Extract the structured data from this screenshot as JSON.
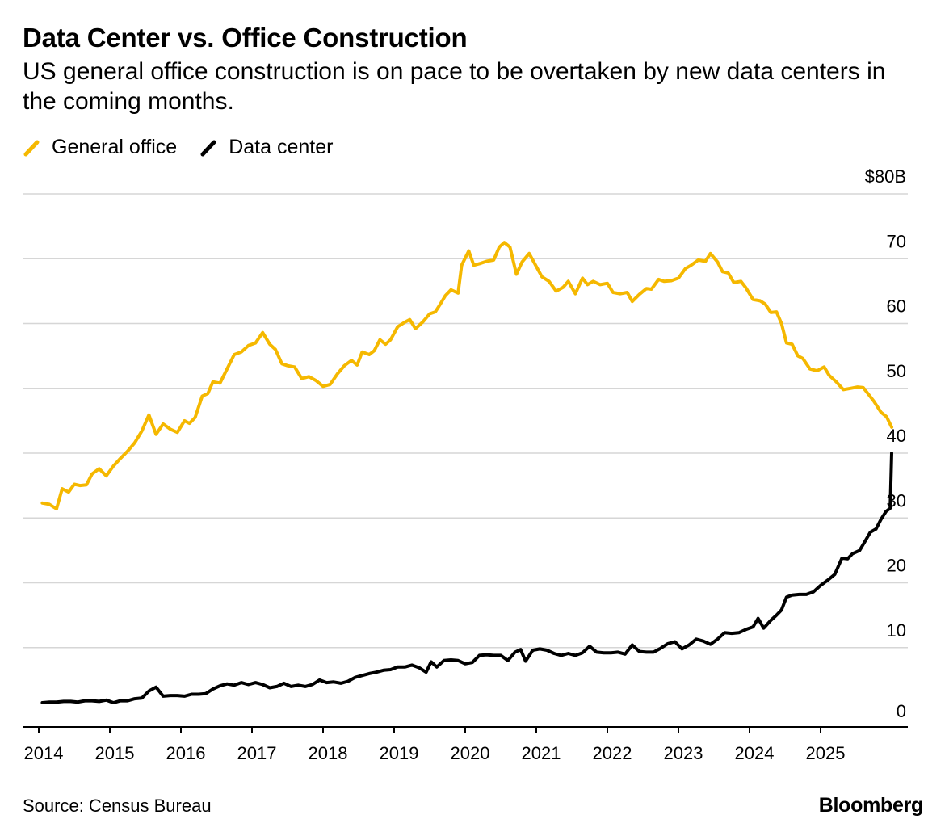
{
  "header": {
    "title": "Data Center vs. Office Construction",
    "subtitle": "US general office construction is on pace to be overtaken by new data centers in the coming months."
  },
  "legend": [
    {
      "label": "General office",
      "color": "#F5B800"
    },
    {
      "label": "Data center",
      "color": "#000000"
    }
  ],
  "footer": {
    "source": "Source: Census Bureau",
    "brand": "Bloomberg"
  },
  "chart_data": {
    "type": "line",
    "title": "Data Center vs. Office Construction",
    "xlabel": "",
    "ylabel": "",
    "xlim": [
      2014.0,
      2026.0
    ],
    "ylim": [
      0,
      80
    ],
    "x_ticks": [
      "2014",
      "2015",
      "2016",
      "2017",
      "2018",
      "2019",
      "2020",
      "2021",
      "2022",
      "2023",
      "2024",
      "2025"
    ],
    "y_ticks": [
      "0",
      "10",
      "20",
      "30",
      "40",
      "50",
      "60",
      "70",
      "$80B"
    ],
    "y_tick_values": [
      0,
      10,
      20,
      30,
      40,
      50,
      60,
      70,
      80
    ],
    "grid": true,
    "legend_position": "top-left",
    "series": [
      {
        "name": "General office",
        "color": "#F5B800",
        "points": [
          [
            2014.05,
            32.3
          ],
          [
            2014.15,
            32.1
          ],
          [
            2014.25,
            31.4
          ],
          [
            2014.33,
            34.5
          ],
          [
            2014.42,
            34.0
          ],
          [
            2014.5,
            35.2
          ],
          [
            2014.58,
            35.0
          ],
          [
            2014.67,
            35.1
          ],
          [
            2014.75,
            36.8
          ],
          [
            2014.85,
            37.6
          ],
          [
            2014.95,
            36.5
          ],
          [
            2015.05,
            38.0
          ],
          [
            2015.15,
            39.2
          ],
          [
            2015.25,
            40.3
          ],
          [
            2015.35,
            41.6
          ],
          [
            2015.45,
            43.4
          ],
          [
            2015.55,
            45.9
          ],
          [
            2015.65,
            42.9
          ],
          [
            2015.75,
            44.5
          ],
          [
            2015.85,
            43.7
          ],
          [
            2015.95,
            43.2
          ],
          [
            2016.05,
            45.0
          ],
          [
            2016.12,
            44.6
          ],
          [
            2016.2,
            45.5
          ],
          [
            2016.3,
            48.8
          ],
          [
            2016.38,
            49.2
          ],
          [
            2016.45,
            51.0
          ],
          [
            2016.55,
            50.8
          ],
          [
            2016.65,
            53.0
          ],
          [
            2016.75,
            55.2
          ],
          [
            2016.85,
            55.6
          ],
          [
            2016.95,
            56.6
          ],
          [
            2017.05,
            57.0
          ],
          [
            2017.15,
            58.6
          ],
          [
            2017.25,
            56.8
          ],
          [
            2017.33,
            56.0
          ],
          [
            2017.42,
            53.8
          ],
          [
            2017.5,
            53.5
          ],
          [
            2017.6,
            53.3
          ],
          [
            2017.7,
            51.5
          ],
          [
            2017.8,
            51.8
          ],
          [
            2017.9,
            51.2
          ],
          [
            2018.0,
            50.3
          ],
          [
            2018.1,
            50.6
          ],
          [
            2018.2,
            52.2
          ],
          [
            2018.3,
            53.5
          ],
          [
            2018.4,
            54.3
          ],
          [
            2018.48,
            53.6
          ],
          [
            2018.55,
            55.6
          ],
          [
            2018.65,
            55.2
          ],
          [
            2018.72,
            55.8
          ],
          [
            2018.8,
            57.5
          ],
          [
            2018.88,
            56.8
          ],
          [
            2018.95,
            57.5
          ],
          [
            2019.05,
            59.5
          ],
          [
            2019.15,
            60.2
          ],
          [
            2019.22,
            60.6
          ],
          [
            2019.3,
            59.2
          ],
          [
            2019.4,
            60.2
          ],
          [
            2019.5,
            61.5
          ],
          [
            2019.58,
            61.8
          ],
          [
            2019.65,
            63.0
          ],
          [
            2019.72,
            64.3
          ],
          [
            2019.8,
            65.2
          ],
          [
            2019.9,
            64.7
          ],
          [
            2019.95,
            69.0
          ],
          [
            2020.05,
            71.2
          ],
          [
            2020.12,
            69.0
          ],
          [
            2020.22,
            69.3
          ],
          [
            2020.3,
            69.6
          ],
          [
            2020.4,
            69.8
          ],
          [
            2020.48,
            71.8
          ],
          [
            2020.55,
            72.5
          ],
          [
            2020.63,
            71.8
          ],
          [
            2020.72,
            67.6
          ],
          [
            2020.8,
            69.5
          ],
          [
            2020.9,
            70.8
          ],
          [
            2021.0,
            68.8
          ],
          [
            2021.08,
            67.2
          ],
          [
            2021.18,
            66.5
          ],
          [
            2021.28,
            65.0
          ],
          [
            2021.38,
            65.6
          ],
          [
            2021.45,
            66.5
          ],
          [
            2021.55,
            64.6
          ],
          [
            2021.65,
            67.0
          ],
          [
            2021.72,
            66.0
          ],
          [
            2021.8,
            66.5
          ],
          [
            2021.9,
            66.0
          ],
          [
            2022.0,
            66.2
          ],
          [
            2022.08,
            64.8
          ],
          [
            2022.18,
            64.6
          ],
          [
            2022.28,
            64.8
          ],
          [
            2022.35,
            63.4
          ],
          [
            2022.45,
            64.5
          ],
          [
            2022.55,
            65.4
          ],
          [
            2022.62,
            65.3
          ],
          [
            2022.72,
            66.8
          ],
          [
            2022.8,
            66.5
          ],
          [
            2022.9,
            66.6
          ],
          [
            2023.0,
            67.0
          ],
          [
            2023.1,
            68.5
          ],
          [
            2023.18,
            69.0
          ],
          [
            2023.28,
            69.8
          ],
          [
            2023.38,
            69.6
          ],
          [
            2023.45,
            70.8
          ],
          [
            2023.55,
            69.5
          ],
          [
            2023.62,
            68.0
          ],
          [
            2023.7,
            67.8
          ],
          [
            2023.78,
            66.3
          ],
          [
            2023.88,
            66.5
          ],
          [
            2023.95,
            65.5
          ],
          [
            2024.05,
            63.7
          ],
          [
            2024.15,
            63.5
          ],
          [
            2024.22,
            63.0
          ],
          [
            2024.3,
            61.7
          ],
          [
            2024.38,
            61.8
          ],
          [
            2024.45,
            60.0
          ],
          [
            2024.52,
            57.0
          ],
          [
            2024.6,
            56.8
          ],
          [
            2024.68,
            55.0
          ],
          [
            2024.75,
            54.6
          ],
          [
            2024.85,
            53.0
          ],
          [
            2024.95,
            52.7
          ],
          [
            2025.05,
            53.3
          ],
          [
            2025.12,
            52.0
          ],
          [
            2025.22,
            51.0
          ],
          [
            2025.32,
            49.8
          ],
          [
            2025.42,
            50.0
          ],
          [
            2025.52,
            50.2
          ],
          [
            2025.6,
            50.1
          ],
          [
            2025.68,
            49.0
          ],
          [
            2025.75,
            48.0
          ],
          [
            2025.85,
            46.3
          ],
          [
            2025.93,
            45.6
          ],
          [
            2026.0,
            44.0
          ]
        ]
      },
      {
        "name": "Data center",
        "color": "#000000",
        "points": [
          [
            2014.05,
            1.5
          ],
          [
            2014.15,
            1.6
          ],
          [
            2014.25,
            1.6
          ],
          [
            2014.35,
            1.7
          ],
          [
            2014.45,
            1.7
          ],
          [
            2014.55,
            1.6
          ],
          [
            2014.65,
            1.8
          ],
          [
            2014.75,
            1.8
          ],
          [
            2014.85,
            1.7
          ],
          [
            2014.95,
            1.9
          ],
          [
            2015.05,
            1.5
          ],
          [
            2015.15,
            1.8
          ],
          [
            2015.25,
            1.8
          ],
          [
            2015.35,
            2.1
          ],
          [
            2015.45,
            2.2
          ],
          [
            2015.55,
            3.3
          ],
          [
            2015.65,
            3.9
          ],
          [
            2015.75,
            2.5
          ],
          [
            2015.85,
            2.6
          ],
          [
            2015.95,
            2.6
          ],
          [
            2016.05,
            2.5
          ],
          [
            2016.15,
            2.8
          ],
          [
            2016.25,
            2.8
          ],
          [
            2016.35,
            2.9
          ],
          [
            2016.45,
            3.6
          ],
          [
            2016.55,
            4.1
          ],
          [
            2016.65,
            4.4
          ],
          [
            2016.75,
            4.2
          ],
          [
            2016.85,
            4.6
          ],
          [
            2016.95,
            4.3
          ],
          [
            2017.05,
            4.6
          ],
          [
            2017.15,
            4.3
          ],
          [
            2017.25,
            3.8
          ],
          [
            2017.35,
            4.0
          ],
          [
            2017.45,
            4.5
          ],
          [
            2017.55,
            4.0
          ],
          [
            2017.65,
            4.2
          ],
          [
            2017.75,
            4.0
          ],
          [
            2017.85,
            4.3
          ],
          [
            2017.95,
            5.0
          ],
          [
            2018.05,
            4.6
          ],
          [
            2018.15,
            4.7
          ],
          [
            2018.25,
            4.5
          ],
          [
            2018.35,
            4.8
          ],
          [
            2018.45,
            5.4
          ],
          [
            2018.55,
            5.7
          ],
          [
            2018.65,
            6.0
          ],
          [
            2018.75,
            6.2
          ],
          [
            2018.85,
            6.5
          ],
          [
            2018.95,
            6.6
          ],
          [
            2019.05,
            7.0
          ],
          [
            2019.15,
            7.0
          ],
          [
            2019.25,
            7.3
          ],
          [
            2019.35,
            6.9
          ],
          [
            2019.45,
            6.2
          ],
          [
            2019.52,
            7.8
          ],
          [
            2019.6,
            7.0
          ],
          [
            2019.7,
            8.0
          ],
          [
            2019.8,
            8.1
          ],
          [
            2019.9,
            8.0
          ],
          [
            2020.0,
            7.5
          ],
          [
            2020.1,
            7.7
          ],
          [
            2020.2,
            8.8
          ],
          [
            2020.3,
            8.9
          ],
          [
            2020.4,
            8.8
          ],
          [
            2020.5,
            8.8
          ],
          [
            2020.6,
            8.0
          ],
          [
            2020.7,
            9.3
          ],
          [
            2020.78,
            9.7
          ],
          [
            2020.85,
            7.9
          ],
          [
            2020.95,
            9.6
          ],
          [
            2021.05,
            9.8
          ],
          [
            2021.15,
            9.6
          ],
          [
            2021.25,
            9.1
          ],
          [
            2021.35,
            8.8
          ],
          [
            2021.45,
            9.1
          ],
          [
            2021.55,
            8.8
          ],
          [
            2021.65,
            9.2
          ],
          [
            2021.75,
            10.2
          ],
          [
            2021.85,
            9.3
          ],
          [
            2021.95,
            9.2
          ],
          [
            2022.05,
            9.2
          ],
          [
            2022.15,
            9.3
          ],
          [
            2022.25,
            9.0
          ],
          [
            2022.35,
            10.4
          ],
          [
            2022.45,
            9.4
          ],
          [
            2022.55,
            9.3
          ],
          [
            2022.65,
            9.3
          ],
          [
            2022.75,
            9.9
          ],
          [
            2022.85,
            10.6
          ],
          [
            2022.95,
            10.9
          ],
          [
            2023.05,
            9.8
          ],
          [
            2023.15,
            10.4
          ],
          [
            2023.25,
            11.3
          ],
          [
            2023.35,
            11.0
          ],
          [
            2023.45,
            10.5
          ],
          [
            2023.55,
            11.3
          ],
          [
            2023.65,
            12.3
          ],
          [
            2023.75,
            12.2
          ],
          [
            2023.85,
            12.3
          ],
          [
            2023.95,
            12.8
          ],
          [
            2024.05,
            13.2
          ],
          [
            2024.12,
            14.5
          ],
          [
            2024.2,
            13.0
          ],
          [
            2024.3,
            14.2
          ],
          [
            2024.38,
            15.0
          ],
          [
            2024.45,
            15.8
          ],
          [
            2024.52,
            17.8
          ],
          [
            2024.6,
            18.1
          ],
          [
            2024.7,
            18.2
          ],
          [
            2024.8,
            18.2
          ],
          [
            2024.9,
            18.6
          ],
          [
            2025.0,
            19.6
          ],
          [
            2025.1,
            20.4
          ],
          [
            2025.2,
            21.3
          ],
          [
            2025.3,
            23.8
          ],
          [
            2025.38,
            23.7
          ],
          [
            2025.45,
            24.5
          ],
          [
            2025.55,
            25.0
          ],
          [
            2025.62,
            26.3
          ],
          [
            2025.7,
            27.8
          ],
          [
            2025.78,
            28.3
          ],
          [
            2025.85,
            29.8
          ],
          [
            2025.92,
            31.0
          ],
          [
            2025.98,
            31.5
          ],
          [
            2026.0,
            40.0
          ]
        ]
      }
    ]
  }
}
